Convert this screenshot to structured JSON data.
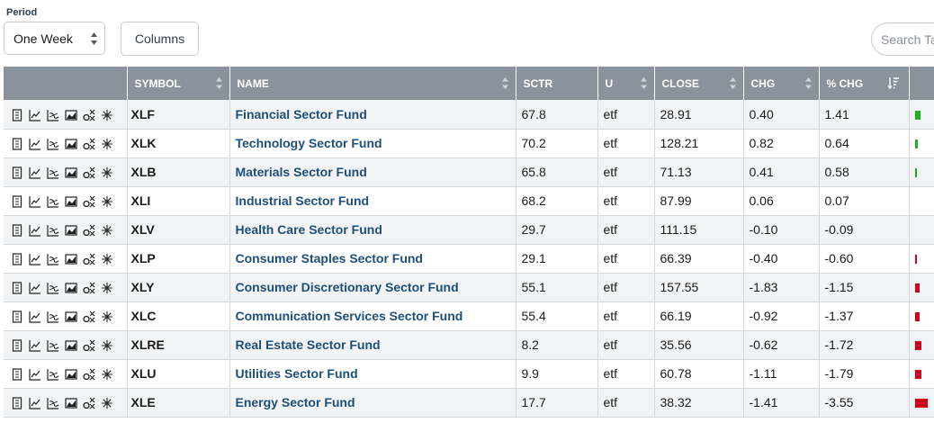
{
  "toolbar": {
    "period_label": "Period",
    "period_value": "One Week",
    "columns_label": "Columns",
    "search_placeholder": "Search Table"
  },
  "table": {
    "headers": {
      "symbol": "SYMBOL",
      "name": "NAME",
      "sctr": "SCTR",
      "u": "U",
      "close": "CLOSE",
      "chg": "CHG",
      "pct_chg": "% CHG"
    },
    "row_icons": [
      "summary-icon",
      "line-chart-icon",
      "performance-chart-icon",
      "candle-chart-icon",
      "options-icon",
      "seasonality-icon"
    ],
    "colors": {
      "positive": "#22b022",
      "negative": "#d0021b"
    },
    "rows": [
      {
        "symbol": "XLF",
        "name": "Financial Sector Fund",
        "sctr": "67.8",
        "u": "etf",
        "close": "28.91",
        "chg": "0.40",
        "pct_chg": "1.41",
        "pct": 1.41
      },
      {
        "symbol": "XLK",
        "name": "Technology Sector Fund",
        "sctr": "70.2",
        "u": "etf",
        "close": "128.21",
        "chg": "0.82",
        "pct_chg": "0.64",
        "pct": 0.64
      },
      {
        "symbol": "XLB",
        "name": "Materials Sector Fund",
        "sctr": "65.8",
        "u": "etf",
        "close": "71.13",
        "chg": "0.41",
        "pct_chg": "0.58",
        "pct": 0.58
      },
      {
        "symbol": "XLI",
        "name": "Industrial Sector Fund",
        "sctr": "68.2",
        "u": "etf",
        "close": "87.99",
        "chg": "0.06",
        "pct_chg": "0.07",
        "pct": 0.07
      },
      {
        "symbol": "XLV",
        "name": "Health Care Sector Fund",
        "sctr": "29.7",
        "u": "etf",
        "close": "111.15",
        "chg": "-0.10",
        "pct_chg": "-0.09",
        "pct": -0.09
      },
      {
        "symbol": "XLP",
        "name": "Consumer Staples Sector Fund",
        "sctr": "29.1",
        "u": "etf",
        "close": "66.39",
        "chg": "-0.40",
        "pct_chg": "-0.60",
        "pct": -0.6
      },
      {
        "symbol": "XLY",
        "name": "Consumer Discretionary Sector Fund",
        "sctr": "55.1",
        "u": "etf",
        "close": "157.55",
        "chg": "-1.83",
        "pct_chg": "-1.15",
        "pct": -1.15
      },
      {
        "symbol": "XLC",
        "name": "Communication Services Sector Fund",
        "sctr": "55.4",
        "u": "etf",
        "close": "66.19",
        "chg": "-0.92",
        "pct_chg": "-1.37",
        "pct": -1.37
      },
      {
        "symbol": "XLRE",
        "name": "Real Estate Sector Fund",
        "sctr": "8.2",
        "u": "etf",
        "close": "35.56",
        "chg": "-0.62",
        "pct_chg": "-1.72",
        "pct": -1.72
      },
      {
        "symbol": "XLU",
        "name": "Utilities Sector Fund",
        "sctr": "9.9",
        "u": "etf",
        "close": "60.78",
        "chg": "-1.11",
        "pct_chg": "-1.79",
        "pct": -1.79
      },
      {
        "symbol": "XLE",
        "name": "Energy Sector Fund",
        "sctr": "17.7",
        "u": "etf",
        "close": "38.32",
        "chg": "-1.41",
        "pct_chg": "-3.55",
        "pct": -3.55
      }
    ]
  }
}
